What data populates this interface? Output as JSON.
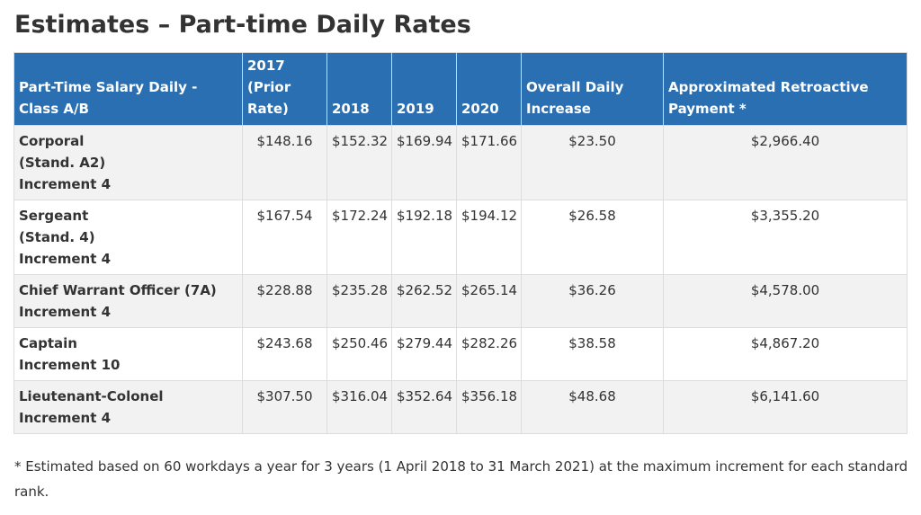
{
  "title": "Estimates – Part-time Daily Rates",
  "table": {
    "headers": [
      [
        "Part-Time Salary Daily -",
        "Class A/B"
      ],
      [
        "2017",
        "(Prior",
        "Rate)"
      ],
      [
        "2018"
      ],
      [
        "2019"
      ],
      [
        "2020"
      ],
      [
        "Overall Daily",
        "Increase"
      ],
      [
        "Approximated Retroactive",
        "Payment *"
      ]
    ],
    "rows": [
      {
        "rank": [
          "Corporal",
          "(Stand. A2)",
          "Increment 4"
        ],
        "values": [
          "$148.16",
          "$152.32",
          "$169.94",
          "$171.66",
          "$23.50",
          "$2,966.40"
        ]
      },
      {
        "rank": [
          "Sergeant",
          "(Stand. 4)",
          "Increment 4"
        ],
        "values": [
          "$167.54",
          "$172.24",
          "$192.18",
          "$194.12",
          "$26.58",
          "$3,355.20"
        ]
      },
      {
        "rank": [
          "Chief Warrant Officer (7A)",
          "Increment 4"
        ],
        "values": [
          "$228.88",
          "$235.28",
          "$262.52",
          "$265.14",
          "$36.26",
          "$4,578.00"
        ]
      },
      {
        "rank": [
          "Captain",
          "Increment 10"
        ],
        "values": [
          "$243.68",
          "$250.46",
          "$279.44",
          "$282.26",
          "$38.58",
          "$4,867.20"
        ]
      },
      {
        "rank": [
          "Lieutenant-Colonel",
          "Increment 4"
        ],
        "values": [
          "$307.50",
          "$316.04",
          "$352.64",
          "$356.18",
          "$48.68",
          "$6,141.60"
        ]
      }
    ]
  },
  "footnote": "* Estimated based on 60 workdays a year for 3 years (1 April 2018 to 31 March 2021) at the maximum increment for each standard rank."
}
